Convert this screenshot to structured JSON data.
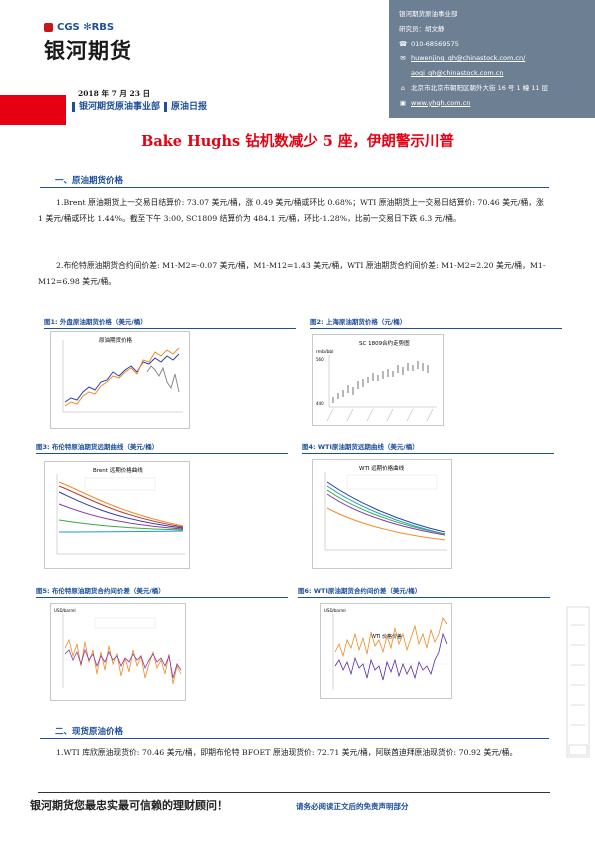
{
  "header": {
    "logo_brand": "CGS  ✻RBS",
    "logo_name": "银河期货",
    "report_date": "2018 年 7 月 23 日",
    "dept": "银河期货原油事业部",
    "report_type": "原油日报"
  },
  "info_panel": {
    "company": "银河期货原油事业部",
    "researcher": "研究员：胡文静",
    "phone": "010-68569575",
    "email1": "huwenjing_qh@chinastock.com.cn/",
    "email2": "aoqi_qh@chinastock.com.cn",
    "address": "北京市北京市朝阳区朝外大街 16 号 1 幢 11 层",
    "website": "www.yhqh.com.cn"
  },
  "title": "Bake Hughs 钻机数减少 5 座，伊朗警示川普",
  "section1": {
    "title": "一、原油期货价格",
    "para1": "1.Brent 原油期货上一交易日结算价: 73.07 美元/桶，涨 0.49 美元/桶或环比 0.68%；WTI 原油期货上一交易日结算价: 70.46 美元/桶，涨 1 美元/桶或环比 1.44%。截至下午 3:00, SC1809 结算价为 484.1 元/桶，环比-1.28%，比前一交易日下跌 6.3 元/桶。",
    "para2": "2.布伦特原油期货合约间价差: M1-M2=-0.07 美元/桶，M1-M12=1.43 美元/桶，WTI 原油期货合约间价差: M1-M2=2.20 美元/桶，M1-M12=6.98 美元/桶。"
  },
  "figures": [
    {
      "caption": "图1: 外盘原油期货价格（美元/桶）",
      "inner_title": "原油期货价格"
    },
    {
      "caption": "图2: 上海原油期货价格（元/桶）",
      "inner_title": "SC 1809合约走势图",
      "unit": "rmb/bbl",
      "ytick_top": "560",
      "ytick_bottom": "440"
    },
    {
      "caption": "图3: 布伦特原油期货远期曲线（美元/桶）",
      "inner_title": "Brent 远期价格曲线"
    },
    {
      "caption": "图4: WTI原油期货远期曲线（美元/桶）",
      "inner_title": "WTI 远期价格曲线"
    },
    {
      "caption": "图5: 布伦特原油期货合约间价差（美元/桶）",
      "inner_title": "",
      "unit": "USD/barrel"
    },
    {
      "caption": "图6: WTI原油期货合约间价差（美元/桶）",
      "inner_title": "WTI 价格价差",
      "unit": "USD/barrel"
    }
  ],
  "section2": {
    "title": "二、现货原油价格",
    "para1": "1.WTI 库欣原油现货价: 70.46 美元/桶，即期布伦特 BFOET 原油现货价: 72.71 美元/桶，阿联酋迪拜原油现货价: 70.92 美元/桶。"
  },
  "footer": {
    "slogan": "银河期货您最忠实最可信赖的理财顾问！",
    "note": "请务必阅读正文后的免责声明部分"
  },
  "colors": {
    "brand_blue": "#1d4f9a",
    "brand_red": "#e60012",
    "panel_gray": "#6d7f93"
  }
}
